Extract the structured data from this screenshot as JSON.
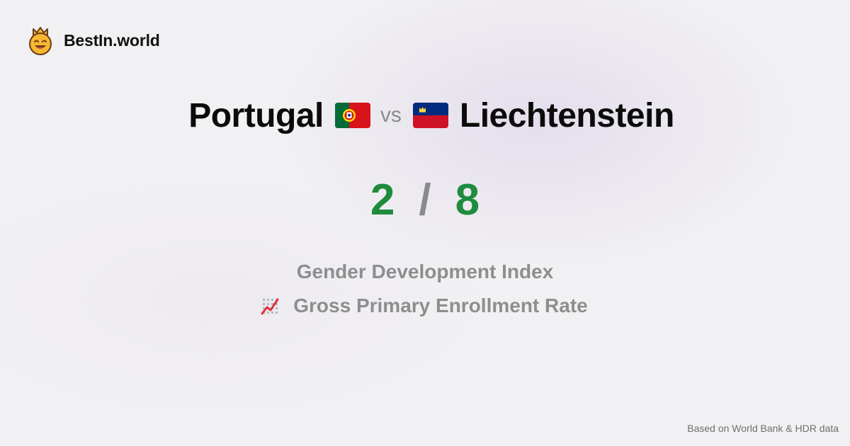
{
  "brand": {
    "name": "BestIn.world",
    "logo_icon": "crowned-smiley-icon"
  },
  "comparison": {
    "country_a": "Portugal",
    "flag_a_icon": "portugal-flag-icon",
    "vs_label": "vs",
    "country_b": "Liechtenstein",
    "flag_b_icon": "liechtenstein-flag-icon"
  },
  "score": {
    "a": "2",
    "separator": "/",
    "b": "8"
  },
  "metrics": [
    {
      "label": "Gender Development Index",
      "icon": ""
    },
    {
      "label": "Gross Primary Enrollment Rate",
      "icon": "chart-increasing-icon"
    }
  ],
  "footer": {
    "source": "Based on World Bank & HDR data"
  },
  "colors": {
    "score": "#1f8b3d",
    "muted_text": "#8e8e8e",
    "title_text": "#0b0b0b"
  }
}
